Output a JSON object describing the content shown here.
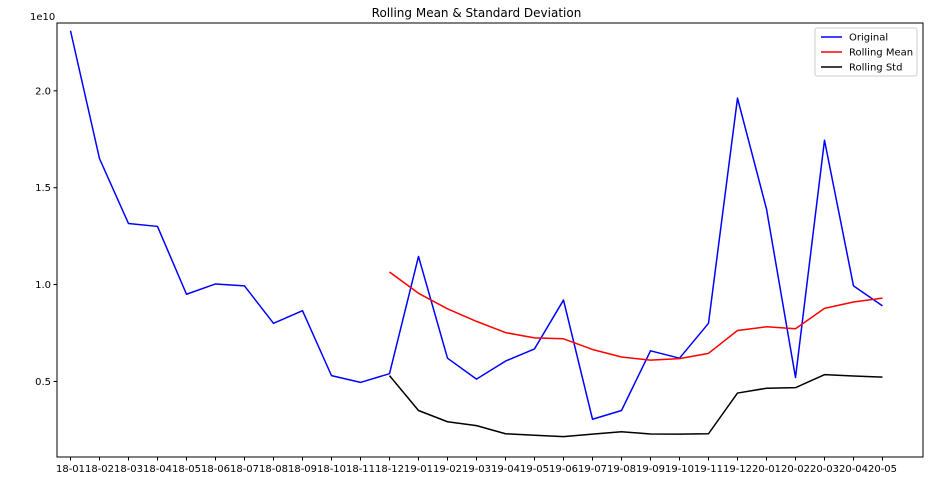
{
  "chart_data": {
    "type": "line",
    "title": "Rolling Mean & Standard Deviation",
    "y_offset_label": "1e10",
    "categories": [
      "18-01",
      "18-02",
      "18-03",
      "18-04",
      "18-05",
      "18-06",
      "18-07",
      "18-08",
      "18-09",
      "18-10",
      "18-11",
      "18-12",
      "19-01",
      "19-02",
      "19-03",
      "19-04",
      "19-05",
      "19-06",
      "19-07",
      "19-08",
      "19-09",
      "19-10",
      "19-11",
      "19-12",
      "20-01",
      "20-02",
      "20-03",
      "20-04",
      "20-05"
    ],
    "yticks": [
      {
        "value": 0.5,
        "label": "0.5"
      },
      {
        "value": 1.0,
        "label": "1.0"
      },
      {
        "value": 1.5,
        "label": "1.5"
      },
      {
        "value": 2.0,
        "label": "2.0"
      }
    ],
    "ylim": [
      0.11,
      2.35
    ],
    "grid": false,
    "legend_position": "top-right",
    "series": [
      {
        "name": "Original",
        "color": "#0000ff",
        "values": [
          2.31,
          1.65,
          1.315,
          1.3,
          0.95,
          1.003,
          0.993,
          0.8,
          0.865,
          0.53,
          0.495,
          0.54,
          1.145,
          0.62,
          0.512,
          0.605,
          0.668,
          0.92,
          0.305,
          0.35,
          0.658,
          0.62,
          0.8,
          1.962,
          1.39,
          0.52,
          1.745,
          0.993,
          0.89
        ]
      },
      {
        "name": "Rolling Mean",
        "color": "#ff0000",
        "values": [
          null,
          null,
          null,
          null,
          null,
          null,
          null,
          null,
          null,
          null,
          null,
          1.065,
          0.955,
          0.875,
          0.81,
          0.752,
          0.725,
          0.72,
          0.665,
          0.626,
          0.61,
          0.618,
          0.645,
          0.763,
          0.782,
          0.772,
          0.877,
          0.91,
          0.93
        ]
      },
      {
        "name": "Rolling Std",
        "color": "#000000",
        "values": [
          null,
          null,
          null,
          null,
          null,
          null,
          null,
          null,
          null,
          null,
          null,
          0.53,
          0.35,
          0.292,
          0.272,
          0.23,
          0.222,
          0.215,
          0.228,
          0.24,
          0.229,
          0.228,
          0.23,
          0.44,
          0.465,
          0.468,
          0.535,
          0.528,
          0.522
        ]
      }
    ]
  }
}
